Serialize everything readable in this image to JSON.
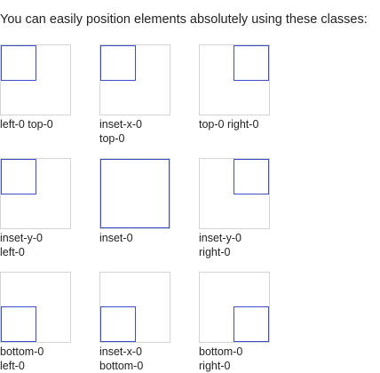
{
  "intro": "You can easily position elements absolutely using these classes:",
  "items": [
    {
      "label_lines": [
        "left-0 top-0"
      ]
    },
    {
      "label_lines": [
        "inset-x-0",
        "top-0"
      ]
    },
    {
      "label_lines": [
        "top-0 right-0"
      ]
    },
    {
      "label_lines": [
        "inset-y-0",
        "left-0"
      ]
    },
    {
      "label_lines": [
        "inset-0"
      ]
    },
    {
      "label_lines": [
        "inset-y-0",
        "right-0"
      ]
    },
    {
      "label_lines": [
        "bottom-0",
        "left-0"
      ]
    },
    {
      "label_lines": [
        "inset-x-0",
        "bottom-0"
      ]
    },
    {
      "label_lines": [
        "bottom-0",
        "right-0"
      ]
    }
  ]
}
